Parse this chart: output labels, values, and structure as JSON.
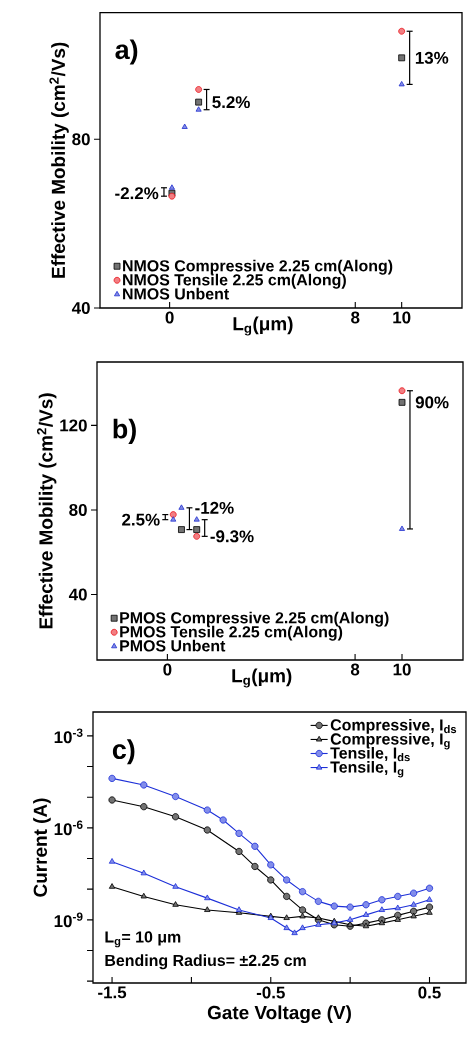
{
  "chart_data": [
    {
      "type": "scatter",
      "title": "a)",
      "xlabel": "L$_{g}$(μm)",
      "ylabel": "Effective Mobility (cm$^{2}$/Vs)",
      "x": [
        0.1,
        0.65,
        1.25,
        10
      ],
      "xlim": [
        -3,
        12.6
      ],
      "xticks": [
        0,
        8,
        10
      ],
      "ylim": [
        40,
        110
      ],
      "yticks": [
        40,
        80
      ],
      "legend": "bottom left",
      "series": [
        {
          "name": "NMOS Compressive 2.25 cm(Along)",
          "color": "#000000",
          "marker": "square",
          "values": [
            67.2,
            null,
            88.8,
            99.3
          ]
        },
        {
          "name": "NMOS Tensile 2.25 cm(Along)",
          "color": "#e8141c",
          "marker": "circle",
          "values": [
            66.5,
            null,
            91.8,
            105.6
          ]
        },
        {
          "name": "NMOS Unbent",
          "color": "#1f2ecf",
          "marker": "triangle",
          "values": [
            68.5,
            82.9,
            87.0,
            93.0
          ]
        }
      ],
      "annotations": [
        {
          "text": "-2.2%",
          "x": 0.1,
          "y": 67.2
        },
        {
          "text": "5.2%",
          "x": 1.25,
          "y": 88.8
        },
        {
          "text": "13%",
          "x": 10,
          "y": 99.3
        }
      ]
    },
    {
      "type": "scatter",
      "title": "b)",
      "xlabel": "L$_{g}$(μm)",
      "ylabel": "Effective Mobility (cm$^{2}$/Vs)",
      "x": [
        0.25,
        0.6,
        1.25,
        10
      ],
      "xlim": [
        -3,
        12.6
      ],
      "xticks": [
        0,
        8,
        10
      ],
      "ylim": [
        9,
        150
      ],
      "yticks": [
        40,
        80,
        120
      ],
      "legend": "bottom left",
      "series": [
        {
          "name": "PMOS Compressive 2.25 cm(Along)",
          "color": "#000000",
          "marker": "square",
          "values": [
            null,
            70.7,
            70.7,
            130.9
          ]
        },
        {
          "name": "PMOS Tensile 2.25 cm(Along)",
          "color": "#e8141c",
          "marker": "circle",
          "values": [
            77.8,
            null,
            67.5,
            136.4
          ]
        },
        {
          "name": "PMOS Unbent",
          "color": "#1f2ecf",
          "marker": "triangle",
          "values": [
            75.4,
            81.0,
            75.4,
            71.0
          ]
        }
      ],
      "annotations": [
        {
          "text": "2.5%",
          "x": 0.25,
          "y": 75.4
        },
        {
          "text": "-12%",
          "x": 0.6,
          "y": 81.0
        },
        {
          "text": "-9.3%",
          "x": 1.25,
          "y": 67.5
        },
        {
          "text": "90%",
          "x": 10,
          "y": 130.9
        }
      ]
    },
    {
      "type": "line",
      "title": "c)",
      "xlabel": "Gate Voltage (V)",
      "ylabel": "Current (A)",
      "log": "y",
      "line_style": "solid",
      "legend": "top right",
      "xlim": [
        -1.62,
        0.73
      ],
      "xticks": [
        -1.5,
        {
          "value": -1.0,
          "label": null
        },
        -0.5,
        {
          "value": 0.0,
          "label": null
        },
        0.5
      ],
      "ylim": [
        8.7e-12,
        0.006
      ],
      "yticks": [
        {
          "value": 0.001,
          "label": "10$^{-3}$"
        },
        {
          "value": 0.0001,
          "label": null
        },
        {
          "value": 1e-05,
          "label": null
        },
        {
          "value": 1e-06,
          "label": "10$^{-6}$"
        },
        {
          "value": 1e-07,
          "label": null
        },
        {
          "value": 1e-08,
          "label": null
        },
        {
          "value": 1e-09,
          "label": "10$^{-9}$"
        },
        {
          "value": 1e-10,
          "label": null
        },
        {
          "value": 1e-11,
          "label": null
        }
      ],
      "series": [
        {
          "name": "Compressive, I$_{ds}$",
          "color": "#000000",
          "marker": "circle",
          "x": [
            -1.5,
            -1.3,
            -1.1,
            -0.9,
            -0.7,
            -0.6,
            -0.5,
            -0.4,
            -0.3,
            -0.2,
            -0.1,
            0.0,
            0.1,
            0.2,
            0.3,
            0.4,
            0.5
          ],
          "values": [
            8.1e-06,
            4.9e-06,
            2.3e-06,
            8.5e-07,
            1.7e-07,
            5.5e-08,
            2e-08,
            5.8e-09,
            2.1e-09,
            1e-09,
            6.9e-10,
            6.2e-10,
            7.8e-10,
            1e-09,
            1.4e-09,
            1.9e-09,
            2.6e-09
          ]
        },
        {
          "name": "Compressive, I$_{g}$",
          "color": "#000000",
          "marker": "triangle",
          "x": [
            -1.5,
            -1.3,
            -1.1,
            -0.9,
            -0.7,
            -0.5,
            -0.4,
            -0.3,
            -0.2,
            -0.1,
            0.0,
            0.1,
            0.2,
            0.3,
            0.4,
            0.5
          ],
          "values": [
            1.2e-08,
            5.8e-09,
            3.1e-09,
            2.1e-09,
            1.7e-09,
            1.3e-09,
            1.15e-09,
            1.3e-09,
            1.15e-09,
            8.9e-10,
            6.9e-10,
            6.2e-10,
            7.8e-10,
            1e-09,
            1.3e-09,
            1.7e-09
          ]
        },
        {
          "name": "Tensile, I$_{ds}$",
          "color": "#1c2fd8",
          "marker": "circle",
          "x": [
            -1.5,
            -1.3,
            -1.1,
            -0.9,
            -0.8,
            -0.7,
            -0.6,
            -0.5,
            -0.4,
            -0.3,
            -0.2,
            -0.1,
            0.0,
            0.1,
            0.2,
            0.3,
            0.4,
            0.5
          ],
          "values": [
            4.1e-05,
            2.5e-05,
            1.05e-05,
            3.8e-06,
            1.8e-06,
            6.6e-07,
            2.5e-07,
            6.2e-08,
            2e-08,
            8.3e-09,
            4e-09,
            2.8e-09,
            2.6e-09,
            3.1e-09,
            4.5e-09,
            5.8e-09,
            7.4e-09,
            1.07e-08
          ]
        },
        {
          "name": "Tensile, I$_{g}$",
          "color": "#1c2fd8",
          "marker": "triangle",
          "x": [
            -1.5,
            -1.3,
            -1.1,
            -0.9,
            -0.7,
            -0.5,
            -0.4,
            -0.35,
            -0.3,
            -0.2,
            -0.1,
            0.0,
            0.1,
            0.2,
            0.3,
            0.4,
            0.5
          ],
          "values": [
            7.9e-08,
            3.3e-08,
            1.2e-08,
            5.1e-09,
            2.1e-09,
            1.15e-09,
            5.4e-10,
            3.7e-10,
            5.4e-10,
            6.9e-10,
            7.8e-10,
            1e-09,
            1.45e-09,
            2.1e-09,
            2.4e-09,
            3.1e-09,
            4.5e-09
          ]
        }
      ],
      "annotations": [
        "L$_{g}$= 10 μm",
        "Bending Radius= ±2.25 cm"
      ]
    }
  ]
}
